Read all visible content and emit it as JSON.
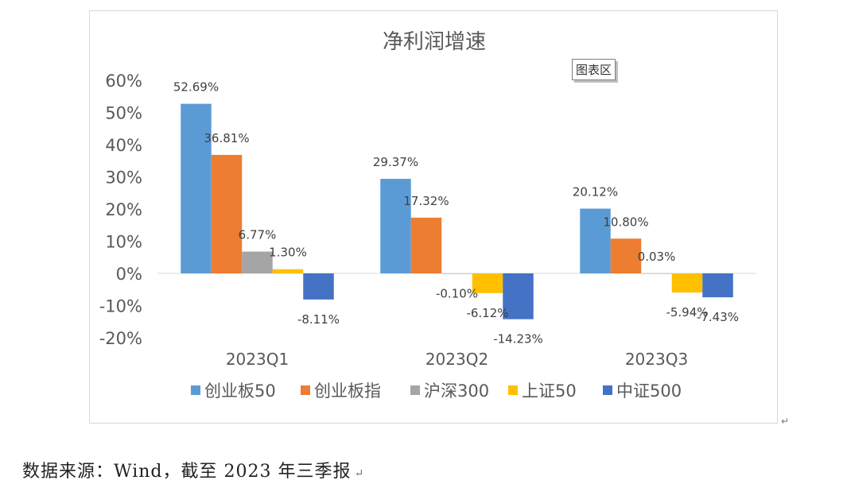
{
  "tooltip": "图表区",
  "caption": "数据来源：Wind，截至 2023 年三季报",
  "chart_data": {
    "type": "bar",
    "title": "净利润增速",
    "categories": [
      "2023Q1",
      "2023Q2",
      "2023Q3"
    ],
    "ylim": [
      -20,
      60
    ],
    "yticks": [
      {
        "value": 60,
        "label": "60%"
      },
      {
        "value": 50,
        "label": "50%"
      },
      {
        "value": 40,
        "label": "40%"
      },
      {
        "value": 30,
        "label": "30%"
      },
      {
        "value": 20,
        "label": "20%"
      },
      {
        "value": 10,
        "label": "10%"
      },
      {
        "value": 0,
        "label": "0%"
      },
      {
        "value": -10,
        "label": "-10%"
      },
      {
        "value": -20,
        "label": "-20%"
      }
    ],
    "grid": false,
    "legend_position": "bottom",
    "series": [
      {
        "name": "创业板50",
        "color": "#5B9BD5",
        "values": [
          52.69,
          29.37,
          20.12
        ],
        "labels": [
          "52.69%",
          "29.37%",
          "20.12%"
        ]
      },
      {
        "name": "创业板指",
        "color": "#ED7D31",
        "values": [
          36.81,
          17.32,
          10.8
        ],
        "labels": [
          "36.81%",
          "17.32%",
          "10.80%"
        ]
      },
      {
        "name": "沪深300",
        "color": "#A5A5A5",
        "values": [
          6.77,
          -0.1,
          0.03
        ],
        "labels": [
          "6.77%",
          "-0.10%",
          "0.03%"
        ]
      },
      {
        "name": "上证50",
        "color": "#FFC000",
        "values": [
          1.3,
          -6.12,
          -5.94
        ],
        "labels": [
          "1.30%",
          "-6.12%",
          "-5.94%"
        ]
      },
      {
        "name": "中证500",
        "color": "#4472C4",
        "values": [
          -8.11,
          -14.23,
          -7.43
        ],
        "labels": [
          "-8.11%",
          "-14.23%",
          "-7.43%"
        ]
      }
    ]
  }
}
